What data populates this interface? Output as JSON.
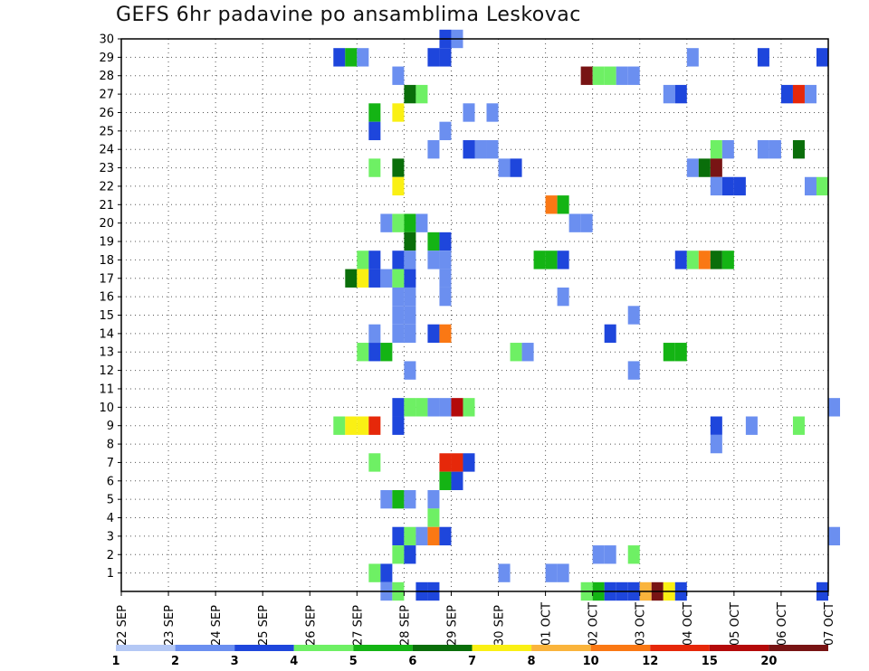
{
  "chart_data": {
    "type": "heatmap",
    "title": "GEFS 6hr padavine po ansamblima Leskovac",
    "xlabel": "",
    "ylabel": "",
    "x_tick_labels": [
      "22 SEP",
      "23 SEP",
      "24 SEP",
      "25 SEP",
      "26 SEP",
      "27 SEP",
      "28 SEP",
      "29 SEP",
      "30 SEP",
      "01 OCT",
      "02 OCT",
      "03 OCT",
      "04 OCT",
      "05 OCT",
      "06 OCT",
      "07 OCT"
    ],
    "x_range_days": [
      0,
      15
    ],
    "y_tick_labels": [
      "1",
      "2",
      "3",
      "4",
      "5",
      "6",
      "7",
      "8",
      "9",
      "10",
      "11",
      "12",
      "13",
      "14",
      "15",
      "16",
      "17",
      "18",
      "19",
      "20",
      "21",
      "22",
      "23",
      "24",
      "25",
      "26",
      "27",
      "28",
      "29",
      "30"
    ],
    "y_range": [
      0,
      30
    ],
    "grid": true,
    "legend": {
      "placement": "bottom",
      "thresholds": [
        "1",
        "2",
        "3",
        "4",
        "5",
        "6",
        "7",
        "8",
        "10",
        "12",
        "15",
        "20"
      ],
      "colors": [
        "#b4c8f5",
        "#6b8ff0",
        "#1e46dc",
        "#6ef064",
        "#14b414",
        "#0a6e0a",
        "#faf014",
        "#fab43c",
        "#fa7814",
        "#e6280a",
        "#b40a0a",
        "#781414"
      ]
    },
    "cells": [
      {
        "member": 30,
        "day": 6.75,
        "level": 2
      },
      {
        "member": 30,
        "day": 7.0,
        "level": 1
      },
      {
        "member": 29,
        "day": 4.5,
        "level": 2
      },
      {
        "member": 29,
        "day": 4.75,
        "level": 4
      },
      {
        "member": 29,
        "day": 5.0,
        "level": 1
      },
      {
        "member": 29,
        "day": 6.5,
        "level": 2
      },
      {
        "member": 29,
        "day": 6.75,
        "level": 2
      },
      {
        "member": 29,
        "day": 12.0,
        "level": 1
      },
      {
        "member": 29,
        "day": 13.5,
        "level": 2
      },
      {
        "member": 29,
        "day": 14.75,
        "level": 2
      },
      {
        "member": 28,
        "day": 5.75,
        "level": 1
      },
      {
        "member": 28,
        "day": 9.75,
        "level": 11
      },
      {
        "member": 28,
        "day": 10.0,
        "level": 3
      },
      {
        "member": 28,
        "day": 10.25,
        "level": 3
      },
      {
        "member": 28,
        "day": 10.5,
        "level": 1
      },
      {
        "member": 28,
        "day": 10.75,
        "level": 1
      },
      {
        "member": 27,
        "day": 6.0,
        "level": 5
      },
      {
        "member": 27,
        "day": 6.25,
        "level": 3
      },
      {
        "member": 27,
        "day": 11.5,
        "level": 1
      },
      {
        "member": 27,
        "day": 11.75,
        "level": 2
      },
      {
        "member": 27,
        "day": 14.0,
        "level": 2
      },
      {
        "member": 27,
        "day": 14.25,
        "level": 9
      },
      {
        "member": 27,
        "day": 14.5,
        "level": 1
      },
      {
        "member": 26,
        "day": 5.25,
        "level": 4
      },
      {
        "member": 26,
        "day": 5.75,
        "level": 6
      },
      {
        "member": 26,
        "day": 7.25,
        "level": 1
      },
      {
        "member": 26,
        "day": 7.75,
        "level": 1
      },
      {
        "member": 25,
        "day": 5.25,
        "level": 2
      },
      {
        "member": 25,
        "day": 6.75,
        "level": 1
      },
      {
        "member": 24,
        "day": 6.5,
        "level": 1
      },
      {
        "member": 24,
        "day": 7.25,
        "level": 2
      },
      {
        "member": 24,
        "day": 7.5,
        "level": 1
      },
      {
        "member": 24,
        "day": 7.75,
        "level": 1
      },
      {
        "member": 24,
        "day": 12.5,
        "level": 3
      },
      {
        "member": 24,
        "day": 12.75,
        "level": 1
      },
      {
        "member": 24,
        "day": 13.5,
        "level": 1
      },
      {
        "member": 24,
        "day": 13.75,
        "level": 1
      },
      {
        "member": 24,
        "day": 14.25,
        "level": 5
      },
      {
        "member": 23,
        "day": 5.25,
        "level": 3
      },
      {
        "member": 23,
        "day": 5.75,
        "level": 5
      },
      {
        "member": 23,
        "day": 8.0,
        "level": 1
      },
      {
        "member": 23,
        "day": 8.25,
        "level": 2
      },
      {
        "member": 23,
        "day": 12.0,
        "level": 1
      },
      {
        "member": 23,
        "day": 12.25,
        "level": 5
      },
      {
        "member": 23,
        "day": 12.5,
        "level": 11
      },
      {
        "member": 22,
        "day": 5.75,
        "level": 6
      },
      {
        "member": 22,
        "day": 12.5,
        "level": 1
      },
      {
        "member": 22,
        "day": 12.75,
        "level": 2
      },
      {
        "member": 22,
        "day": 13.0,
        "level": 2
      },
      {
        "member": 22,
        "day": 14.5,
        "level": 1
      },
      {
        "member": 22,
        "day": 14.75,
        "level": 3
      },
      {
        "member": 21,
        "day": 9.0,
        "level": 8
      },
      {
        "member": 21,
        "day": 9.25,
        "level": 4
      },
      {
        "member": 20,
        "day": 5.5,
        "level": 1
      },
      {
        "member": 20,
        "day": 5.75,
        "level": 3
      },
      {
        "member": 20,
        "day": 6.0,
        "level": 4
      },
      {
        "member": 20,
        "day": 6.25,
        "level": 1
      },
      {
        "member": 20,
        "day": 9.5,
        "level": 1
      },
      {
        "member": 20,
        "day": 9.75,
        "level": 1
      },
      {
        "member": 19,
        "day": 6.0,
        "level": 5
      },
      {
        "member": 19,
        "day": 6.5,
        "level": 4
      },
      {
        "member": 19,
        "day": 6.75,
        "level": 2
      },
      {
        "member": 18,
        "day": 5.0,
        "level": 3
      },
      {
        "member": 18,
        "day": 5.25,
        "level": 2
      },
      {
        "member": 18,
        "day": 5.75,
        "level": 2
      },
      {
        "member": 18,
        "day": 6.0,
        "level": 1
      },
      {
        "member": 18,
        "day": 6.5,
        "level": 1
      },
      {
        "member": 18,
        "day": 6.75,
        "level": 1
      },
      {
        "member": 18,
        "day": 8.75,
        "level": 4
      },
      {
        "member": 18,
        "day": 9.0,
        "level": 4
      },
      {
        "member": 18,
        "day": 9.25,
        "level": 2
      },
      {
        "member": 18,
        "day": 11.75,
        "level": 2
      },
      {
        "member": 18,
        "day": 12.0,
        "level": 3
      },
      {
        "member": 18,
        "day": 12.25,
        "level": 8
      },
      {
        "member": 18,
        "day": 12.5,
        "level": 5
      },
      {
        "member": 18,
        "day": 12.75,
        "level": 4
      },
      {
        "member": 17,
        "day": 4.75,
        "level": 5
      },
      {
        "member": 17,
        "day": 5.0,
        "level": 6
      },
      {
        "member": 17,
        "day": 5.25,
        "level": 2
      },
      {
        "member": 17,
        "day": 5.5,
        "level": 1
      },
      {
        "member": 17,
        "day": 5.75,
        "level": 3
      },
      {
        "member": 17,
        "day": 6.0,
        "level": 2
      },
      {
        "member": 17,
        "day": 6.75,
        "level": 1
      },
      {
        "member": 16,
        "day": 5.75,
        "level": 1
      },
      {
        "member": 16,
        "day": 6.0,
        "level": 1
      },
      {
        "member": 16,
        "day": 6.75,
        "level": 1
      },
      {
        "member": 16,
        "day": 9.25,
        "level": 1
      },
      {
        "member": 15,
        "day": 5.75,
        "level": 1
      },
      {
        "member": 15,
        "day": 6.0,
        "level": 1
      },
      {
        "member": 15,
        "day": 10.75,
        "level": 1
      },
      {
        "member": 14,
        "day": 5.25,
        "level": 1
      },
      {
        "member": 14,
        "day": 5.75,
        "level": 1
      },
      {
        "member": 14,
        "day": 6.0,
        "level": 1
      },
      {
        "member": 14,
        "day": 6.5,
        "level": 2
      },
      {
        "member": 14,
        "day": 6.75,
        "level": 8
      },
      {
        "member": 14,
        "day": 10.25,
        "level": 2
      },
      {
        "member": 13,
        "day": 5.0,
        "level": 3
      },
      {
        "member": 13,
        "day": 5.25,
        "level": 2
      },
      {
        "member": 13,
        "day": 5.5,
        "level": 4
      },
      {
        "member": 13,
        "day": 8.25,
        "level": 3
      },
      {
        "member": 13,
        "day": 8.5,
        "level": 1
      },
      {
        "member": 13,
        "day": 11.5,
        "level": 4
      },
      {
        "member": 13,
        "day": 11.75,
        "level": 4
      },
      {
        "member": 12,
        "day": 6.0,
        "level": 1
      },
      {
        "member": 12,
        "day": 10.75,
        "level": 1
      },
      {
        "member": 10,
        "day": 5.75,
        "level": 2
      },
      {
        "member": 10,
        "day": 6.0,
        "level": 3
      },
      {
        "member": 10,
        "day": 6.25,
        "level": 3
      },
      {
        "member": 10,
        "day": 6.5,
        "level": 1
      },
      {
        "member": 10,
        "day": 6.75,
        "level": 1
      },
      {
        "member": 10,
        "day": 7.0,
        "level": 10
      },
      {
        "member": 10,
        "day": 7.25,
        "level": 3
      },
      {
        "member": 10,
        "day": 15.0,
        "level": 1
      },
      {
        "member": 9,
        "day": 4.5,
        "level": 3
      },
      {
        "member": 9,
        "day": 4.75,
        "level": 6
      },
      {
        "member": 9,
        "day": 5.0,
        "level": 6
      },
      {
        "member": 9,
        "day": 5.25,
        "level": 9
      },
      {
        "member": 9,
        "day": 5.75,
        "level": 2
      },
      {
        "member": 9,
        "day": 12.5,
        "level": 2
      },
      {
        "member": 9,
        "day": 13.25,
        "level": 1
      },
      {
        "member": 9,
        "day": 14.25,
        "level": 3
      },
      {
        "member": 8,
        "day": 12.5,
        "level": 1
      },
      {
        "member": 7,
        "day": 5.25,
        "level": 3
      },
      {
        "member": 7,
        "day": 6.75,
        "level": 9
      },
      {
        "member": 7,
        "day": 7.0,
        "level": 9
      },
      {
        "member": 7,
        "day": 7.25,
        "level": 2
      },
      {
        "member": 6,
        "day": 6.75,
        "level": 4
      },
      {
        "member": 6,
        "day": 7.0,
        "level": 2
      },
      {
        "member": 5,
        "day": 5.5,
        "level": 1
      },
      {
        "member": 5,
        "day": 5.75,
        "level": 4
      },
      {
        "member": 5,
        "day": 6.0,
        "level": 1
      },
      {
        "member": 5,
        "day": 6.5,
        "level": 1
      },
      {
        "member": 4,
        "day": 6.5,
        "level": 3
      },
      {
        "member": 3,
        "day": 5.75,
        "level": 2
      },
      {
        "member": 3,
        "day": 6.0,
        "level": 3
      },
      {
        "member": 3,
        "day": 6.25,
        "level": 1
      },
      {
        "member": 3,
        "day": 6.5,
        "level": 8
      },
      {
        "member": 3,
        "day": 6.75,
        "level": 2
      },
      {
        "member": 3,
        "day": 15.0,
        "level": 1
      },
      {
        "member": 2,
        "day": 5.75,
        "level": 3
      },
      {
        "member": 2,
        "day": 6.0,
        "level": 2
      },
      {
        "member": 2,
        "day": 10.0,
        "level": 1
      },
      {
        "member": 2,
        "day": 10.25,
        "level": 1
      },
      {
        "member": 2,
        "day": 10.75,
        "level": 3
      },
      {
        "member": 1,
        "day": 5.25,
        "level": 3
      },
      {
        "member": 1,
        "day": 5.5,
        "level": 2
      },
      {
        "member": 1,
        "day": 8.0,
        "level": 1
      },
      {
        "member": 1,
        "day": 9.0,
        "level": 1
      },
      {
        "member": 1,
        "day": 9.25,
        "level": 1
      },
      {
        "member": 0,
        "day": 5.5,
        "level": 1
      },
      {
        "member": 0,
        "day": 5.75,
        "level": 3
      },
      {
        "member": 0,
        "day": 6.25,
        "level": 2
      },
      {
        "member": 0,
        "day": 6.5,
        "level": 2
      },
      {
        "member": 0,
        "day": 9.75,
        "level": 3
      },
      {
        "member": 0,
        "day": 10.0,
        "level": 4
      },
      {
        "member": 0,
        "day": 10.25,
        "level": 2
      },
      {
        "member": 0,
        "day": 10.5,
        "level": 2
      },
      {
        "member": 0,
        "day": 10.75,
        "level": 2
      },
      {
        "member": 0,
        "day": 11.0,
        "level": 7
      },
      {
        "member": 0,
        "day": 11.25,
        "level": 11
      },
      {
        "member": 0,
        "day": 11.5,
        "level": 6
      },
      {
        "member": 0,
        "day": 11.75,
        "level": 2
      },
      {
        "member": 0,
        "day": 14.75,
        "level": 2
      }
    ]
  }
}
